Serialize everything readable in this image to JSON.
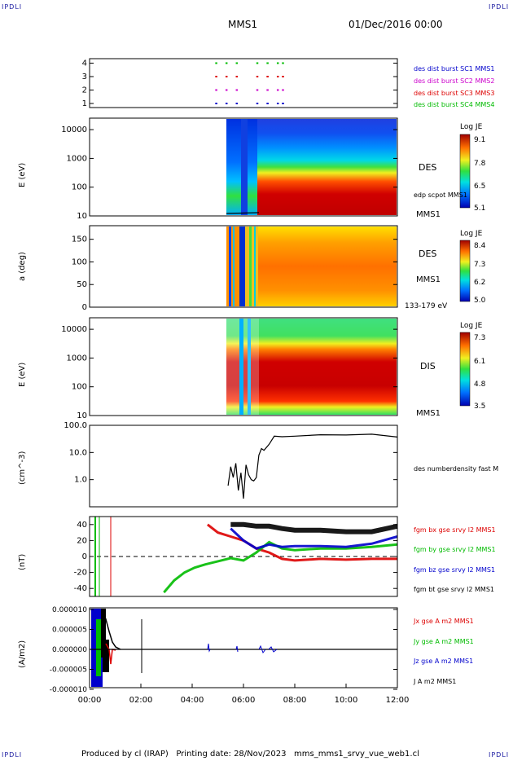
{
  "header": {
    "corner_tl": "IPDLI",
    "corner_tr": "IPDLI",
    "corner_bl": "IPDLI",
    "corner_br": "IPDLI",
    "mission": "MMS1",
    "date": "01/Dec/2016 00:00"
  },
  "footer": {
    "text": "Produced by cl (IRAP)   Printing date: 28/Nov/2023   mms_mms1_srvy_vue_web1.cl"
  },
  "colors": {
    "blue": "#0000cc",
    "magenta": "#cc00cc",
    "red": "#dd0000",
    "green": "#00bb00",
    "black": "#000000"
  },
  "chart_data": [
    {
      "type": "scatter",
      "panel": "burst-availability",
      "yticks": [
        "1",
        "2",
        "3",
        "4"
      ],
      "series": [
        {
          "name": "des dist burst SC1 MMS1",
          "color": "#0000cc",
          "level": 1,
          "x_hours": [
            4.9,
            5.3,
            5.7,
            6.5,
            6.9,
            7.3,
            7.5
          ]
        },
        {
          "name": "des dist burst SC2 MMS2",
          "color": "#cc00cc",
          "level": 2,
          "x_hours": [
            4.9,
            5.3,
            5.7,
            6.5,
            6.9,
            7.3,
            7.5
          ]
        },
        {
          "name": "des dist burst SC3 MMS3",
          "color": "#dd0000",
          "level": 3,
          "x_hours": [
            4.9,
            5.3,
            5.7,
            6.5,
            6.9,
            7.3,
            7.5
          ]
        },
        {
          "name": "des dist burst SC4 MMS4",
          "color": "#00bb00",
          "level": 4,
          "x_hours": [
            4.9,
            5.3,
            5.7,
            6.5,
            6.9,
            7.3,
            7.5
          ]
        }
      ]
    },
    {
      "type": "heatmap",
      "panel": "des-energy",
      "ylabel": "E (eV)",
      "yticks": [
        "10",
        "100",
        "1000",
        "10000"
      ],
      "label": "DES",
      "sublabel": "MMS1",
      "overlay_label": "edp scpot MMS1",
      "colorbar": {
        "title": "Log JE",
        "ticks": [
          "9.1",
          "7.8",
          "6.5",
          "5.1"
        ]
      }
    },
    {
      "type": "heatmap",
      "panel": "des-pitch",
      "ylabel": "a (deg)",
      "yticks": [
        "0",
        "50",
        "100",
        "150"
      ],
      "label": "DES",
      "sublabel": "MMS1",
      "energy_label": "133-179 eV",
      "colorbar": {
        "title": "Log JE",
        "ticks": [
          "8.4",
          "7.3",
          "6.2",
          "5.0"
        ]
      }
    },
    {
      "type": "heatmap",
      "panel": "dis-energy",
      "ylabel": "E (eV)",
      "yticks": [
        "10",
        "100",
        "1000",
        "10000"
      ],
      "label": "DIS",
      "sublabel": "MMS1",
      "colorbar": {
        "title": "Log JE",
        "ticks": [
          "7.3",
          "6.1",
          "4.8",
          "3.5"
        ]
      }
    },
    {
      "type": "line",
      "panel": "density",
      "ylabel": "(cm^-3)",
      "yticks": [
        "1.0",
        "10.0",
        "100.0"
      ],
      "series": [
        {
          "name": "des numberdensity fast M",
          "color": "#000000",
          "x": [
            5.4,
            5.5,
            5.6,
            5.7,
            5.8,
            5.9,
            6.0,
            6.1,
            6.2,
            6.3,
            6.4,
            6.5,
            6.6,
            6.7,
            6.8,
            7.0,
            7.2,
            7.5,
            8.0,
            9.0,
            10.0,
            11.0,
            11.5,
            12.0
          ],
          "y": [
            0.6,
            3.0,
            1.2,
            4.0,
            0.4,
            1.8,
            0.2,
            3.5,
            1.5,
            1.0,
            0.9,
            1.2,
            8.0,
            14.0,
            12.0,
            20.0,
            40.0,
            38.0,
            40.0,
            45.0,
            44.0,
            47.0,
            42.0,
            37.0
          ]
        }
      ]
    },
    {
      "type": "line",
      "panel": "magnetic-field",
      "ylabel": "(nT)",
      "yticks": [
        "-40",
        "-20",
        "0",
        "20",
        "40"
      ],
      "series": [
        {
          "name": "fgm bx gse srvy l2 MMS1",
          "color": "#dd0000",
          "x": [
            4.6,
            5.0,
            5.5,
            6.0,
            6.5,
            7.0,
            7.5,
            8.0,
            9.0,
            10.0,
            11.0,
            12.0
          ],
          "y": [
            40,
            30,
            25,
            20,
            10,
            5,
            -3,
            -5,
            -3,
            -4,
            -3,
            -3
          ]
        },
        {
          "name": "fgm by gse srvy l2 MMS1",
          "color": "#00bb00",
          "x": [
            2.9,
            3.3,
            3.7,
            4.1,
            4.5,
            5.0,
            5.5,
            6.0,
            6.5,
            7.0,
            7.5,
            8.0,
            9.0,
            10.0,
            11.0,
            12.0
          ],
          "y": [
            -45,
            -30,
            -20,
            -14,
            -10,
            -6,
            -2,
            -5,
            5,
            18,
            10,
            8,
            10,
            10,
            12,
            15
          ]
        },
        {
          "name": "fgm bz gse srvy l2 MMS1",
          "color": "#0000cc",
          "x": [
            5.5,
            6.0,
            6.5,
            7.0,
            7.5,
            8.0,
            9.0,
            10.0,
            11.0,
            12.0
          ],
          "y": [
            35,
            20,
            10,
            15,
            12,
            13,
            13,
            12,
            16,
            25
          ]
        },
        {
          "name": "fgm bt gse srvy l2 MMS1",
          "color": "#000000",
          "x": [
            5.5,
            6.0,
            6.5,
            7.0,
            7.5,
            8.0,
            9.0,
            10.0,
            11.0,
            12.0
          ],
          "y": [
            40,
            40,
            38,
            38,
            35,
            33,
            33,
            31,
            31,
            38
          ]
        }
      ]
    },
    {
      "type": "line",
      "panel": "current",
      "ylabel": "(A/m2)",
      "yticks": [
        "-0.000010",
        "-0.000005",
        "0.000000",
        "0.000005",
        "0.000010"
      ],
      "xticks": [
        "00:00",
        "02:00",
        "04:00",
        "06:00",
        "08:00",
        "10:00",
        "12:00"
      ],
      "series": [
        {
          "name": "Jx gse A m2 MMS1",
          "color": "#dd0000"
        },
        {
          "name": "Jy gse A m2 MMS1",
          "color": "#00bb00"
        },
        {
          "name": "Jz gse A m2 MMS1",
          "color": "#0000cc"
        },
        {
          "name": "J A m2 MMS1",
          "color": "#000000"
        }
      ]
    }
  ]
}
